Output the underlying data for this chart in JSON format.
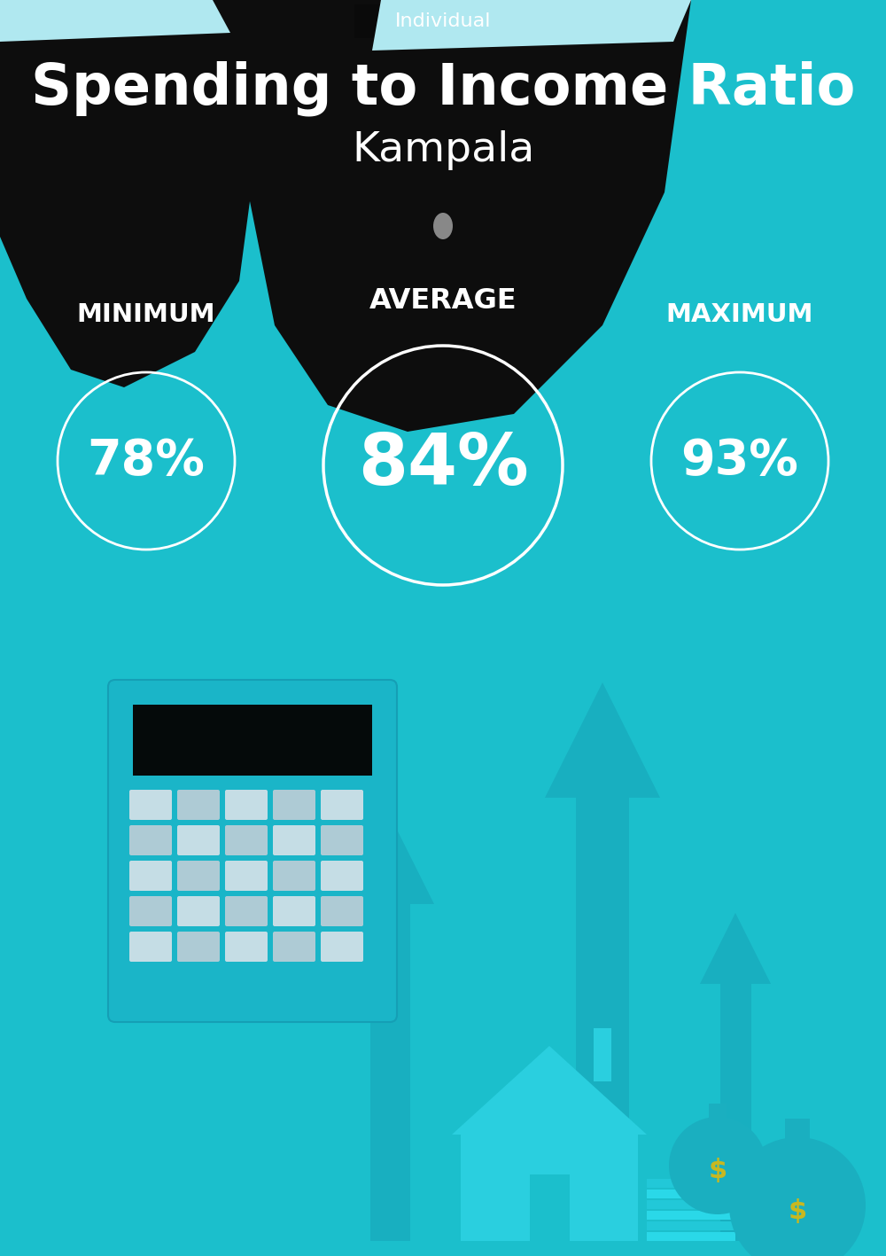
{
  "background_color": "#1bbfcc",
  "tag_bg": "#0a0a0a",
  "tag_text": "Individual",
  "tag_text_color": "#ffffff",
  "title": "Spending to Income Ratio",
  "subtitle": "Kampala",
  "title_color": "#ffffff",
  "subtitle_color": "#ffffff",
  "min_label": "MINIMUM",
  "avg_label": "AVERAGE",
  "max_label": "MAXIMUM",
  "min_value": "78%",
  "avg_value": "84%",
  "max_value": "93%",
  "circle_edge_color": "#ffffff",
  "text_color": "#ffffff",
  "title_fontsize": 46,
  "subtitle_fontsize": 34,
  "label_fontsize": 21,
  "min_fontsize": 40,
  "avg_fontsize": 58,
  "max_fontsize": 40,
  "arrow_color": "#18afc0",
  "house_color": "#2acfdf",
  "money_color": "#1aafc0"
}
